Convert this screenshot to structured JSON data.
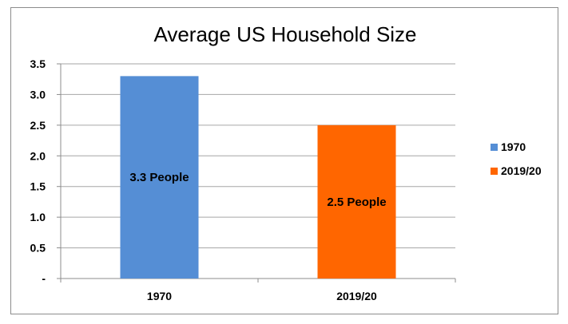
{
  "chart_data": {
    "type": "bar",
    "title": "Average US Household Size",
    "xlabel": "",
    "ylabel": "",
    "categories": [
      "1970",
      "2019/20"
    ],
    "values": [
      3.3,
      2.5
    ],
    "data_labels": [
      "3.3 People",
      "2.5 People"
    ],
    "colors": [
      "#558ED5",
      "#FF6600"
    ],
    "ylim": [
      0,
      3.5
    ],
    "yticks": [
      0,
      0.5,
      1.0,
      1.5,
      2.0,
      2.5,
      3.0,
      3.5
    ],
    "ytick_labels": [
      "-",
      "0.5",
      "1.0",
      "1.5",
      "2.0",
      "2.5",
      "3.0",
      "3.5"
    ],
    "grid": true,
    "legend": {
      "placement": "right",
      "entries": [
        "1970",
        "2019/20"
      ]
    }
  }
}
